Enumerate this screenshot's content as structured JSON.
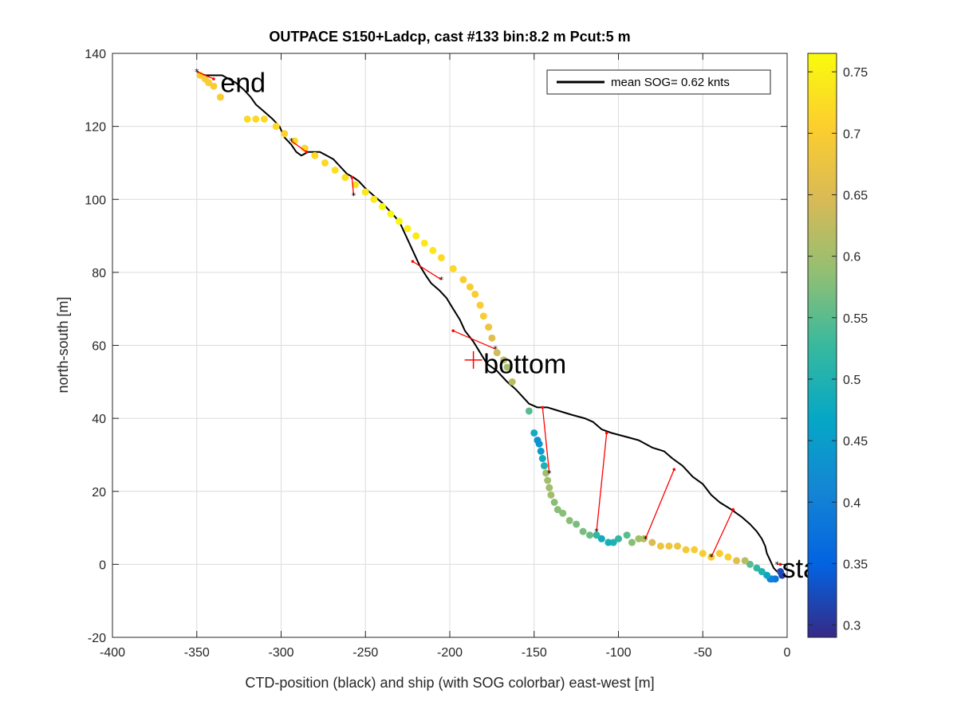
{
  "chart_data": {
    "type": "scatter",
    "title": "OUTPACE S150+Ladcp, cast #133 bin:8.2 m  Pcut:5 m",
    "xlabel": "CTD-position (black) and ship (with SOG colorbar) east-west [m]",
    "ylabel": "north-south [m]",
    "xlim": [
      -400,
      0
    ],
    "ylim": [
      -20,
      140
    ],
    "xticks": [
      -400,
      -350,
      -300,
      -250,
      -200,
      -150,
      -100,
      -50,
      0
    ],
    "yticks": [
      -20,
      0,
      20,
      40,
      60,
      80,
      100,
      120,
      140
    ],
    "grid": true,
    "legend": {
      "placement": "top-right",
      "entries": [
        "mean SOG=  0.62 knts"
      ]
    },
    "colorbar": {
      "range": [
        0.29,
        0.765
      ],
      "ticks": [
        0.3,
        0.35,
        0.4,
        0.45,
        0.5,
        0.55,
        0.6,
        0.65,
        0.7,
        0.75
      ]
    },
    "annotations": [
      {
        "text": "end",
        "x": -336,
        "y": 132
      },
      {
        "text": "bottom",
        "x": -180,
        "y": 55
      },
      {
        "text": "start",
        "x": -3,
        "y": -1
      }
    ],
    "bottom_marker": {
      "x": -186,
      "y": 56
    },
    "ctd_track": [
      [
        -6,
        -2
      ],
      [
        -8,
        -1
      ],
      [
        -10,
        1
      ],
      [
        -12,
        3
      ],
      [
        -13,
        5
      ],
      [
        -15,
        7
      ],
      [
        -18,
        9
      ],
      [
        -22,
        11
      ],
      [
        -27,
        13
      ],
      [
        -33,
        15
      ],
      [
        -40,
        17
      ],
      [
        -45,
        19
      ],
      [
        -50,
        22
      ],
      [
        -56,
        24
      ],
      [
        -62,
        27
      ],
      [
        -68,
        29
      ],
      [
        -73,
        31
      ],
      [
        -80,
        32
      ],
      [
        -88,
        34
      ],
      [
        -96,
        35
      ],
      [
        -104,
        36
      ],
      [
        -110,
        37
      ],
      [
        -115,
        39
      ],
      [
        -120,
        40
      ],
      [
        -128,
        41
      ],
      [
        -135,
        42
      ],
      [
        -142,
        43
      ],
      [
        -148,
        43
      ],
      [
        -153,
        44
      ],
      [
        -157,
        46
      ],
      [
        -161,
        48
      ],
      [
        -166,
        50
      ],
      [
        -172,
        53
      ],
      [
        -178,
        55
      ],
      [
        -182,
        58
      ],
      [
        -186,
        61
      ],
      [
        -191,
        64
      ],
      [
        -194,
        67
      ],
      [
        -198,
        70
      ],
      [
        -202,
        73
      ],
      [
        -206,
        75
      ],
      [
        -211,
        77
      ],
      [
        -214,
        79
      ],
      [
        -218,
        82
      ],
      [
        -220,
        84
      ],
      [
        -222,
        86
      ],
      [
        -225,
        89
      ],
      [
        -227,
        91
      ],
      [
        -229,
        93
      ],
      [
        -232,
        95
      ],
      [
        -236,
        97
      ],
      [
        -240,
        99
      ],
      [
        -245,
        101
      ],
      [
        -250,
        103
      ],
      [
        -254,
        105
      ],
      [
        -257,
        106
      ],
      [
        -261,
        107
      ],
      [
        -265,
        109
      ],
      [
        -269,
        111
      ],
      [
        -273,
        112
      ],
      [
        -277,
        113
      ],
      [
        -280,
        113
      ],
      [
        -284,
        113
      ],
      [
        -288,
        112
      ],
      [
        -291,
        113
      ],
      [
        -294,
        115
      ],
      [
        -298,
        117
      ],
      [
        -301,
        120
      ],
      [
        -305,
        122
      ],
      [
        -310,
        124
      ],
      [
        -315,
        126
      ],
      [
        -318,
        128
      ],
      [
        -322,
        130
      ],
      [
        -327,
        132
      ],
      [
        -331,
        133
      ],
      [
        -335,
        134
      ],
      [
        -340,
        134
      ],
      [
        -345,
        134
      ],
      [
        -350,
        135
      ]
    ],
    "ship_points": [
      [
        -3,
        -3,
        0.31
      ],
      [
        -4,
        -2,
        0.32
      ],
      [
        -7,
        -4,
        0.38
      ],
      [
        -9,
        -4,
        0.39
      ],
      [
        -10,
        -4,
        0.4
      ],
      [
        -12,
        -3,
        0.47
      ],
      [
        -15,
        -2,
        0.5
      ],
      [
        -18,
        -1,
        0.52
      ],
      [
        -22,
        0,
        0.55
      ],
      [
        -25,
        1,
        0.62
      ],
      [
        -30,
        1,
        0.66
      ],
      [
        -35,
        2,
        0.7
      ],
      [
        -40,
        3,
        0.7
      ],
      [
        -45,
        2,
        0.7
      ],
      [
        -50,
        3,
        0.7
      ],
      [
        -55,
        4,
        0.7
      ],
      [
        -60,
        4,
        0.69
      ],
      [
        -65,
        5,
        0.68
      ],
      [
        -70,
        5,
        0.68
      ],
      [
        -75,
        5,
        0.68
      ],
      [
        -80,
        6,
        0.65
      ],
      [
        -85,
        7,
        0.62
      ],
      [
        -88,
        7,
        0.6
      ],
      [
        -92,
        6,
        0.58
      ],
      [
        -95,
        8,
        0.55
      ],
      [
        -100,
        7,
        0.52
      ],
      [
        -103,
        6,
        0.5
      ],
      [
        -106,
        6,
        0.49
      ],
      [
        -110,
        7,
        0.48
      ],
      [
        -113,
        8,
        0.52
      ],
      [
        -117,
        8,
        0.56
      ],
      [
        -121,
        9,
        0.57
      ],
      [
        -125,
        11,
        0.57
      ],
      [
        -129,
        12,
        0.58
      ],
      [
        -133,
        14,
        0.58
      ],
      [
        -136,
        15,
        0.58
      ],
      [
        -138,
        17,
        0.58
      ],
      [
        -140,
        19,
        0.6
      ],
      [
        -141,
        21,
        0.6
      ],
      [
        -142,
        23,
        0.6
      ],
      [
        -143,
        25,
        0.6
      ],
      [
        -144,
        27,
        0.5
      ],
      [
        -145,
        29,
        0.48
      ],
      [
        -146,
        31,
        0.45
      ],
      [
        -147,
        33,
        0.44
      ],
      [
        -148,
        34,
        0.43
      ],
      [
        -150,
        36,
        0.48
      ],
      [
        -153,
        42,
        0.55
      ],
      [
        -163,
        50,
        0.62
      ],
      [
        -166,
        54,
        0.6
      ],
      [
        -168,
        56,
        0.62
      ],
      [
        -172,
        58,
        0.64
      ],
      [
        -175,
        62,
        0.66
      ],
      [
        -177,
        65,
        0.68
      ],
      [
        -180,
        68,
        0.7
      ],
      [
        -182,
        71,
        0.7
      ],
      [
        -185,
        74,
        0.7
      ],
      [
        -188,
        76,
        0.7
      ],
      [
        -192,
        78,
        0.7
      ],
      [
        -198,
        81,
        0.72
      ],
      [
        -205,
        84,
        0.72
      ],
      [
        -210,
        86,
        0.74
      ],
      [
        -215,
        88,
        0.74
      ],
      [
        -220,
        90,
        0.74
      ],
      [
        -225,
        92,
        0.75
      ],
      [
        -230,
        94,
        0.76
      ],
      [
        -235,
        96,
        0.76
      ],
      [
        -240,
        98,
        0.76
      ],
      [
        -245,
        100,
        0.74
      ],
      [
        -250,
        102,
        0.74
      ],
      [
        -256,
        104,
        0.73
      ],
      [
        -262,
        106,
        0.73
      ],
      [
        -268,
        108,
        0.73
      ],
      [
        -274,
        110,
        0.72
      ],
      [
        -280,
        112,
        0.72
      ],
      [
        -286,
        114,
        0.72
      ],
      [
        -292,
        116,
        0.72
      ],
      [
        -298,
        118,
        0.71
      ],
      [
        -303,
        120,
        0.72
      ],
      [
        -310,
        122,
        0.72
      ],
      [
        -315,
        122,
        0.72
      ],
      [
        -320,
        122,
        0.72
      ],
      [
        -336,
        128,
        0.7
      ],
      [
        -340,
        131,
        0.7
      ],
      [
        -343,
        132,
        0.7
      ],
      [
        -345,
        133,
        0.7
      ],
      [
        -348,
        134,
        0.7
      ]
    ],
    "connections": [
      {
        "ship": [
          -350,
          135
        ],
        "ctd": [
          -340,
          133
        ]
      },
      {
        "ship": [
          -294,
          116
        ],
        "ctd": [
          -285,
          113
        ]
      },
      {
        "ship": [
          -257,
          101
        ],
        "ctd": [
          -258,
          106
        ]
      },
      {
        "ship": [
          -205,
          78
        ],
        "ctd": [
          -222,
          83
        ]
      },
      {
        "ship": [
          -173,
          59
        ],
        "ctd": [
          -198,
          64
        ]
      },
      {
        "ship": [
          -141,
          25
        ],
        "ctd": [
          -145,
          43
        ]
      },
      {
        "ship": [
          -113,
          9
        ],
        "ctd": [
          -107,
          36
        ]
      },
      {
        "ship": [
          -84,
          7
        ],
        "ctd": [
          -67,
          26
        ]
      },
      {
        "ship": [
          -45,
          2
        ],
        "ctd": [
          -32,
          15
        ]
      },
      {
        "ship": [
          -6,
          0
        ],
        "ctd": [
          -4,
          0
        ]
      }
    ]
  }
}
